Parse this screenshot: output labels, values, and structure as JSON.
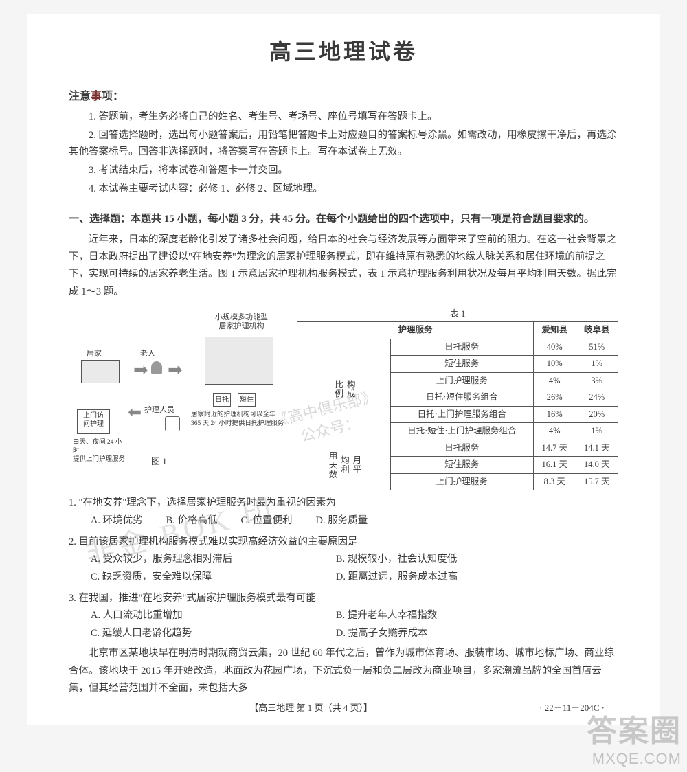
{
  "title": "高三地理试卷",
  "notice": {
    "header_prefix": "注意",
    "header_accent": "事",
    "header_suffix": "项：",
    "items": [
      "1. 答题前，考生务必将自己的姓名、考生号、考场号、座位号填写在答题卡上。",
      "2. 回答选择题时，选出每小题答案后，用铅笔把答题卡上对应题目的答案标号涂黑。如需改动，用橡皮擦干净后，再选涂其他答案标号。回答非选择题时，将答案写在答题卡上。写在本试卷上无效。",
      "3. 考试结束后，将本试卷和答题卡一并交回。",
      "4. 本试卷主要考试内容：必修 1、必修 2、区域地理。"
    ]
  },
  "section1_header": "一、选择题：本题共 15 小题，每小题 3 分，共 45 分。在每个小题给出的四个选项中，只有一项是符合题目要求的。",
  "passage1": "近年来，日本的深度老龄化引发了诸多社会问题，给日本的社会与经济发展等方面带来了空前的阻力。在这一社会背景之下，日本政府提出了建设以\"在地安养\"为理念的居家护理服务模式，即在维持原有熟悉的地缘人脉关系和居住环境的前提之下，实现可持续的居家养老生活。图 1 示意居家护理机构服务模式，表 1 示意护理服务利用状况及每月平均利用天数。据此完成 1～3 题。",
  "diagram": {
    "caption_fig": "图 1",
    "home_label": "居家",
    "facility_label": "小规模多功能型\n居家护理机构",
    "elder_label": "老人",
    "nurse_label": "护理人员",
    "tag1": "日托",
    "tag2": "短住",
    "visit_box": "上门访\n问护理",
    "visit_sub": "白天、夜间 24 小时\n提供上门护理服务",
    "fac_sub": "居家附近的护理机构可以全年\n365 天 24 小时提供日托护理服务"
  },
  "table1": {
    "caption": "表 1",
    "header_service": "护理服务",
    "header_c1": "爱知县",
    "header_c2": "岐阜县",
    "group1": "构成\n比例",
    "group2": "月平\n均利\n用天数",
    "rows_g1": [
      {
        "label": "日托服务",
        "c1": "40%",
        "c2": "51%"
      },
      {
        "label": "短住服务",
        "c1": "10%",
        "c2": "1%"
      },
      {
        "label": "上门护理服务",
        "c1": "4%",
        "c2": "3%"
      },
      {
        "label": "日托·短住服务组合",
        "c1": "26%",
        "c2": "24%"
      },
      {
        "label": "日托·上门护理服务组合",
        "c1": "16%",
        "c2": "20%"
      },
      {
        "label": "日托·短住·上门护理服务组合",
        "c1": "4%",
        "c2": "1%"
      }
    ],
    "rows_g2": [
      {
        "label": "日托服务",
        "c1": "14.7 天",
        "c2": "14.1 天"
      },
      {
        "label": "短住服务",
        "c1": "16.1 天",
        "c2": "14.0 天"
      },
      {
        "label": "上门护理服务",
        "c1": "8.3 天",
        "c2": "15.7 天"
      }
    ]
  },
  "questions": [
    {
      "stem": "1. \"在地安养\"理念下，选择居家护理服务时最为重视的因素为",
      "opts": [
        "A. 环境优劣",
        "B. 价格高低",
        "C. 位置便利",
        "D. 服务质量"
      ],
      "layout": "one"
    },
    {
      "stem": "2. 目前该居家护理机构服务模式难以实现高经济效益的主要原因是",
      "opts": [
        "A. 受众较少，服务理念相对滞后",
        "B. 规模较小，社会认知度低",
        "C. 缺乏资质，安全难以保障",
        "D. 距离过远，服务成本过高"
      ],
      "layout": "two"
    },
    {
      "stem": "3. 在我国，推进\"在地安养\"式居家护理服务模式最有可能",
      "opts": [
        "A. 人口流动比重增加",
        "B. 提升老年人幸福指数",
        "C. 延缓人口老龄化趋势",
        "D. 提高子女赡养成本"
      ],
      "layout": "two"
    }
  ],
  "passage2": "北京市区某地块早在明清时期就商贸云集，20 世纪 60 年代之后，曾作为城市体育场、服装市场、城市地标广场、商业综合体。该地块于 2015 年开始改造，地面改为花园广场，下沉式负一层和负二层改为商业项目，多家潮流品牌的全国首店云集，但其经营范围并不全面，未包括大多",
  "footer_center": "【高三地理  第 1 页（共 4 页）】",
  "footer_right": "· 22－11－204C ·",
  "watermarks": {
    "a": "非金 BOK 印",
    "b_line1": "《高中俱乐部》",
    "b_line2": "公众号：",
    "corner1": "答案圈",
    "corner2": "MXQE.COM"
  },
  "style": {
    "page_bg": "#ffffff",
    "body_bg": "#f5f5f5",
    "text_color": "#3a3a3a",
    "accent_color": "#7a3030",
    "border_color": "#555555",
    "watermark_color": "rgba(120,120,120,0.22)"
  }
}
